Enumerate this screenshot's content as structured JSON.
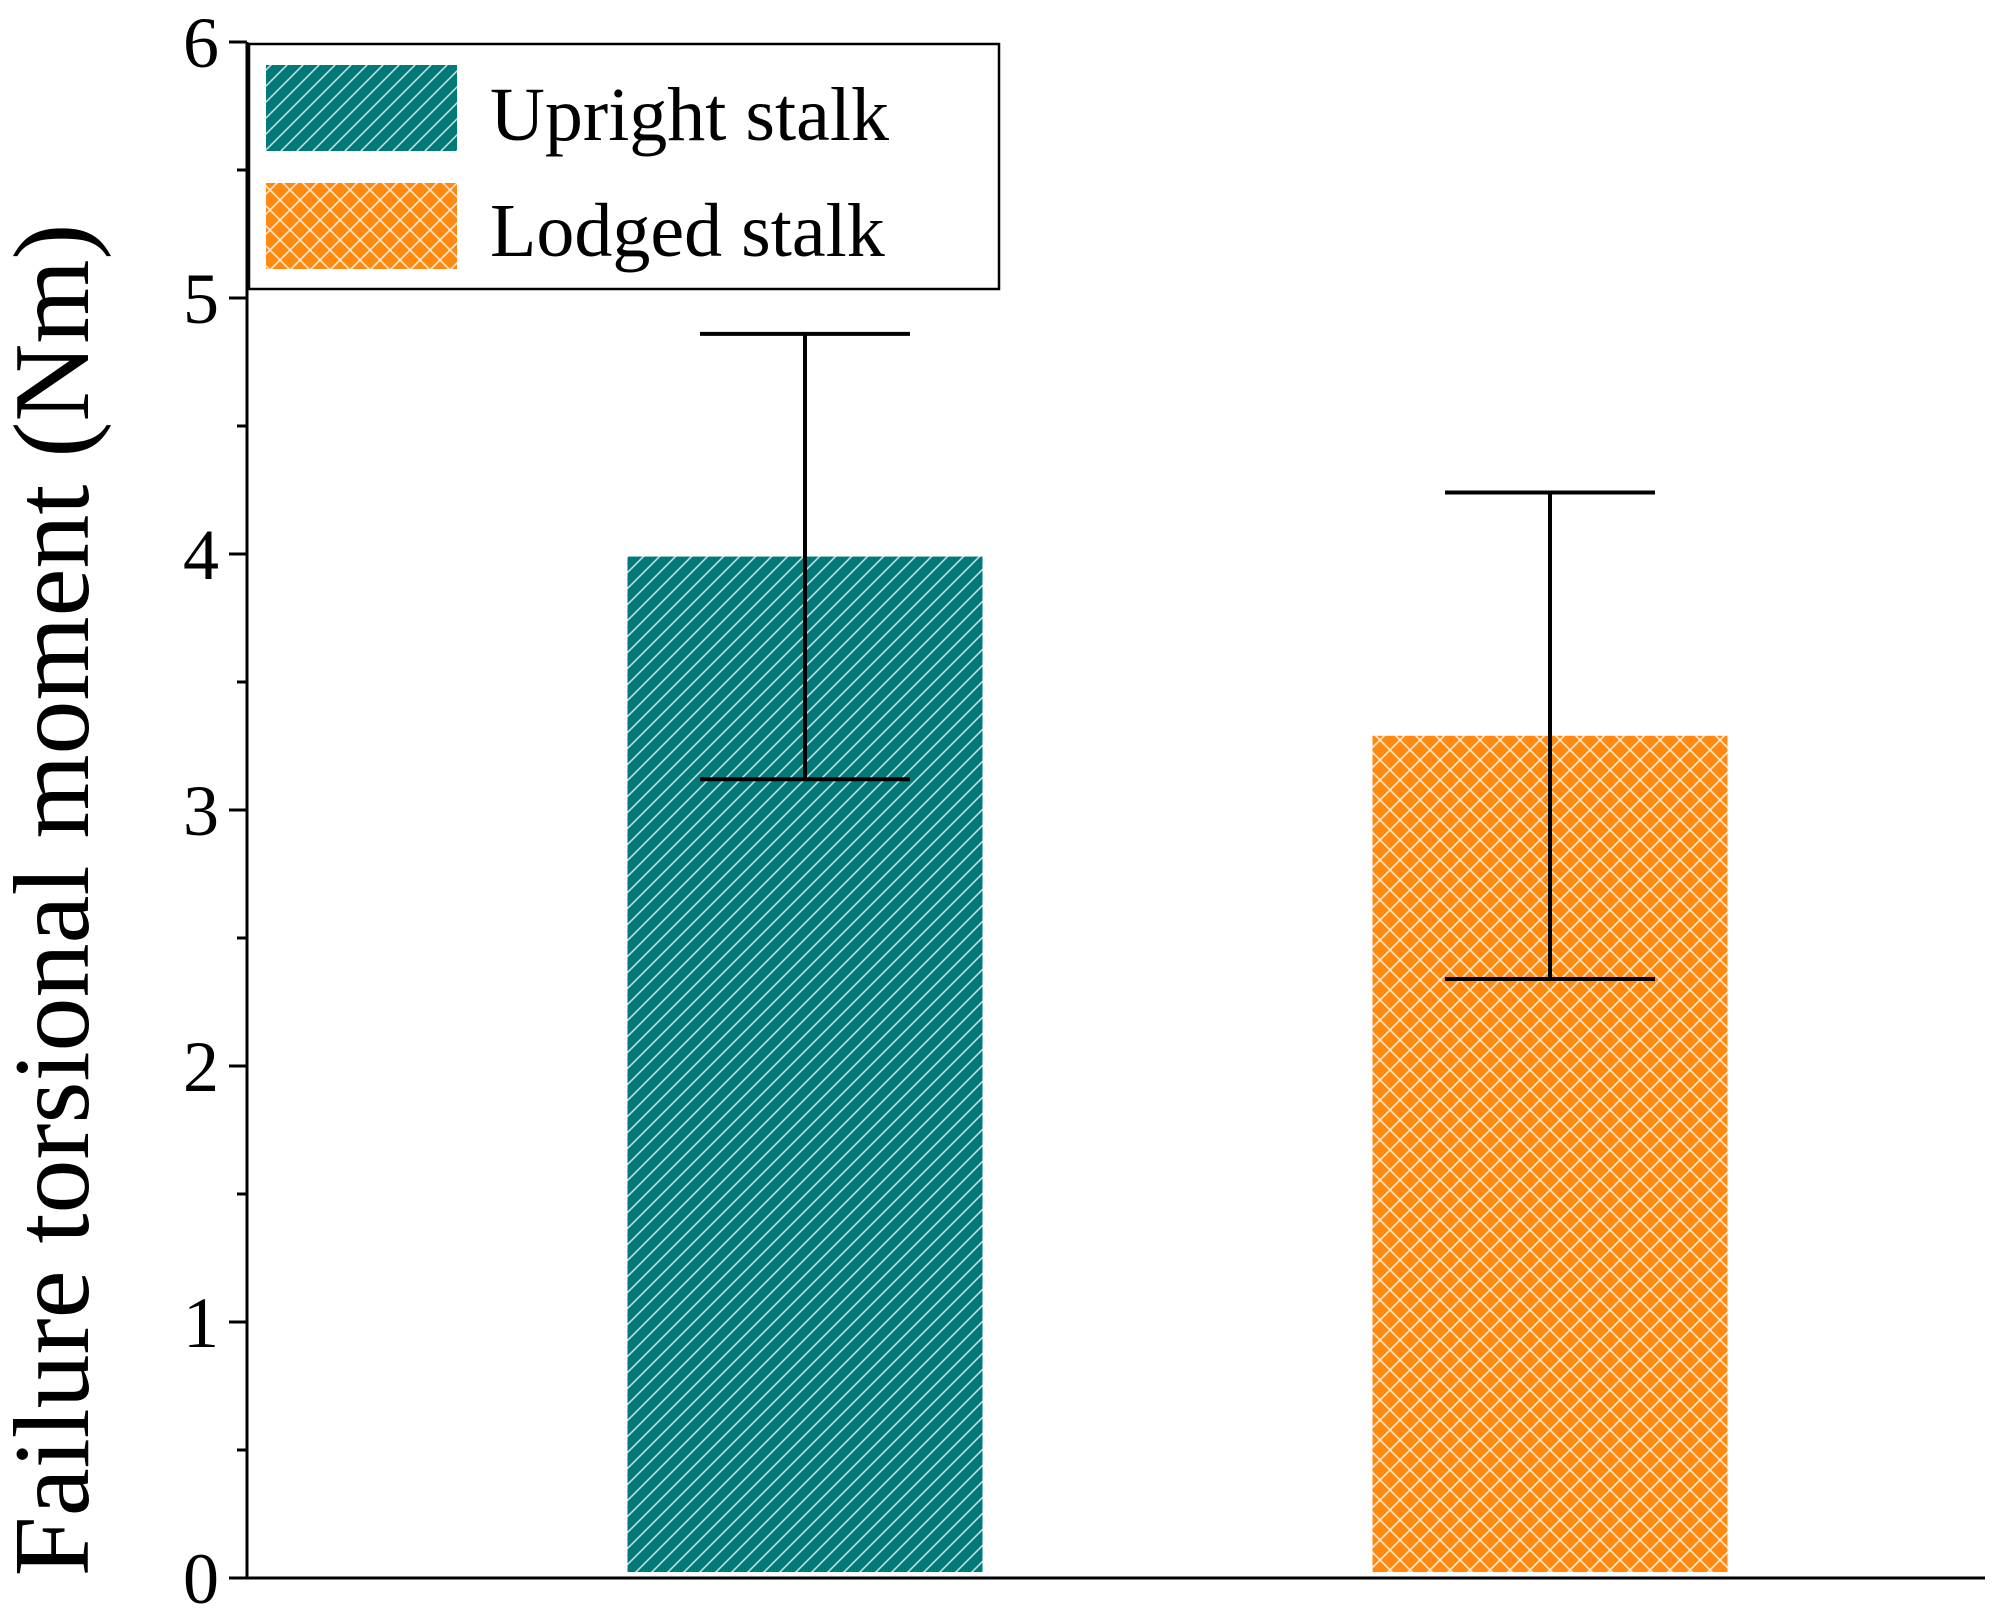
{
  "chart_data": {
    "type": "bar",
    "title": "",
    "xlabel": "",
    "ylabel": "Failure torsional moment (Nm)",
    "ylim": [
      0,
      6
    ],
    "yticks": [
      "0",
      "1",
      "2",
      "3",
      "4",
      "5",
      "6"
    ],
    "minor_yticks": [
      0.5,
      1.5,
      2.5,
      3.5,
      4.5,
      5.5
    ],
    "grid": false,
    "legend_position": "top-left",
    "series": [
      {
        "name": "Upright stalk",
        "value": 3.99,
        "error": 0.87,
        "color": "#007a78",
        "pattern": "diagonal-hatch"
      },
      {
        "name": "Lodged stalk",
        "value": 3.29,
        "error": 0.95,
        "color": "#ff8a12",
        "pattern": "crosshatch"
      }
    ]
  }
}
